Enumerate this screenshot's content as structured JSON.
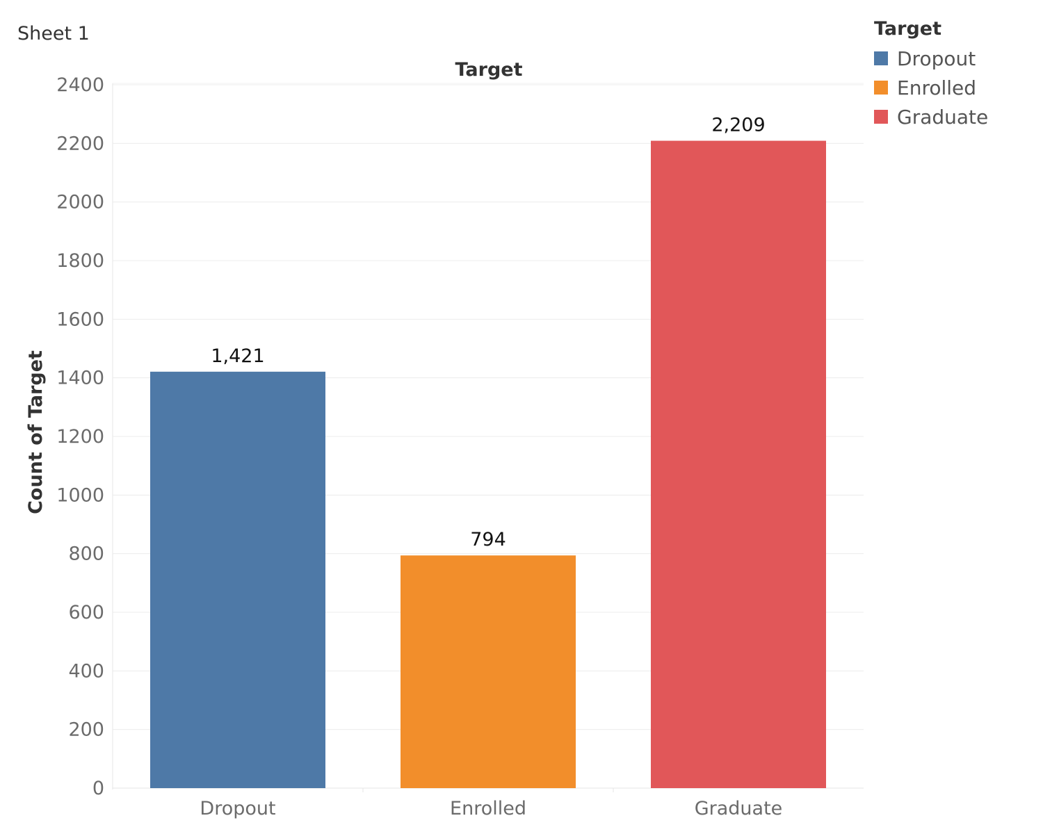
{
  "sheet": {
    "title": "Sheet 1"
  },
  "legend": {
    "title": "Target",
    "items": [
      {
        "label": "Dropout",
        "color": "#4e79a7"
      },
      {
        "label": "Enrolled",
        "color": "#f28e2b"
      },
      {
        "label": "Graduate",
        "color": "#e15759"
      }
    ]
  },
  "chart_data": {
    "type": "bar",
    "title": "Target",
    "xlabel": "",
    "ylabel": "Count of Target",
    "categories": [
      "Dropout",
      "Enrolled",
      "Graduate"
    ],
    "values": [
      1421,
      794,
      2209
    ],
    "value_labels": [
      "1,421",
      "794",
      "2,209"
    ],
    "colors": [
      "#4e79a7",
      "#f28e2b",
      "#e15759"
    ],
    "ylim": [
      0,
      2400
    ],
    "yticks": [
      0,
      200,
      400,
      600,
      800,
      1000,
      1200,
      1400,
      1600,
      1800,
      2000,
      2200,
      2400
    ],
    "grid": true,
    "legend_position": "top-right"
  }
}
